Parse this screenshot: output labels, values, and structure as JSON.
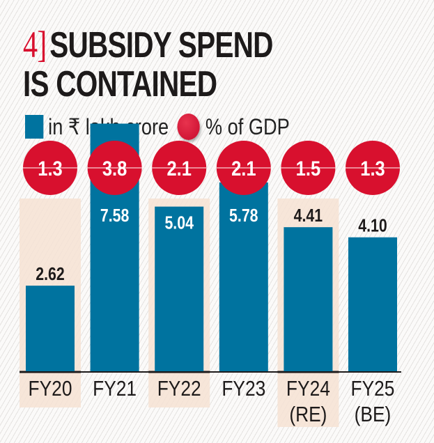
{
  "title": {
    "number": "4]",
    "line1": "SUBSIDY SPEND",
    "line2": "IS CONTAINED"
  },
  "legend": {
    "bar_label": "in ₹ lakh crore",
    "circle_label": "% of GDP"
  },
  "colors": {
    "bar": "#00739f",
    "circle": "#d8102e",
    "highlight": "#f6e2d3",
    "title_number": "#d8102e"
  },
  "chart_data": {
    "type": "bar",
    "categories": [
      "FY20",
      "FY21",
      "FY22",
      "FY23",
      "FY24 (RE)",
      "FY25 (BE)"
    ],
    "category_lines": [
      [
        "FY20"
      ],
      [
        "FY21"
      ],
      [
        "FY22"
      ],
      [
        "FY23"
      ],
      [
        "FY24",
        "(RE)"
      ],
      [
        "FY25",
        "(BE)"
      ]
    ],
    "series": [
      {
        "name": "in ₹ lakh crore",
        "values": [
          2.62,
          7.58,
          5.04,
          5.78,
          4.41,
          4.1
        ],
        "labels": [
          "2.62",
          "7.58",
          "5.04",
          "5.78",
          "4.41",
          "4.10"
        ]
      },
      {
        "name": "% of GDP",
        "values": [
          1.3,
          3.8,
          2.1,
          2.1,
          1.5,
          1.3
        ],
        "labels": [
          "1.3",
          "3.8",
          "2.1",
          "2.1",
          "1.5",
          "1.3"
        ]
      }
    ],
    "highlighted_categories": [
      "FY20",
      "FY22",
      "FY24 (RE)"
    ],
    "grid": false
  }
}
